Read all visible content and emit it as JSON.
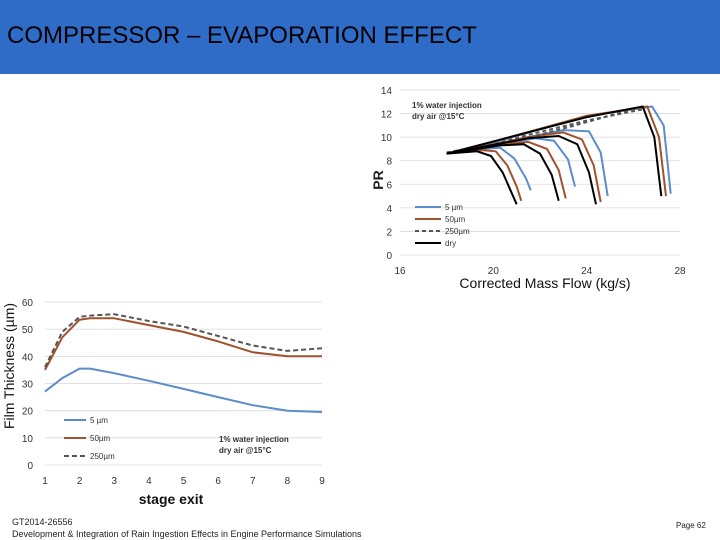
{
  "header": {
    "title": "COMPRESSOR – EVAPORATION EFFECT"
  },
  "footer": {
    "doc_id": "GT2014-26556",
    "doc_title": "Development & Integration of Rain Ingestion Effects in Engine Performance Simulations",
    "page": "Page 62"
  },
  "chart_data": [
    {
      "type": "line",
      "title": "",
      "xlabel": "Corrected Mass Flow (kg/s)",
      "ylabel": "PR",
      "xlim": [
        16,
        28
      ],
      "ylim": [
        0,
        14
      ],
      "x_ticks": [
        "16",
        "20",
        "24",
        "28"
      ],
      "y_ticks": [
        "0",
        "2",
        "4",
        "6",
        "8",
        "10",
        "12",
        "14"
      ],
      "annotation": [
        "1% water injection",
        "dry air @15°C"
      ],
      "legend": [
        "5 µm",
        "50µm",
        "250µm",
        "dry"
      ],
      "series": [
        {
          "name": "5 µm",
          "color": "#5b8ccc",
          "dash": "solid",
          "lines": [
            [
              [
                18.5,
                8.7
              ],
              [
                19.5,
                9.0
              ],
              [
                20.3,
                9.1
              ],
              [
                20.9,
                8.2
              ],
              [
                21.4,
                6.5
              ],
              [
                21.6,
                5.5
              ]
            ],
            [
              [
                18.5,
                8.7
              ],
              [
                20.3,
                9.4
              ],
              [
                21.8,
                9.9
              ],
              [
                22.6,
                9.7
              ],
              [
                23.2,
                8.1
              ],
              [
                23.5,
                5.8
              ]
            ],
            [
              [
                18.5,
                8.7
              ],
              [
                21.5,
                10.0
              ],
              [
                23.0,
                10.6
              ],
              [
                24.1,
                10.5
              ],
              [
                24.6,
                8.7
              ],
              [
                24.9,
                5.0
              ]
            ],
            [
              [
                18.5,
                8.7
              ],
              [
                24.0,
                11.8
              ],
              [
                26.8,
                12.6
              ],
              [
                27.3,
                11.0
              ],
              [
                27.6,
                5.2
              ]
            ]
          ]
        },
        {
          "name": "50µm",
          "color": "#a0522d",
          "dash": "solid",
          "lines": [
            [
              [
                18.3,
                8.7
              ],
              [
                19.5,
                8.9
              ],
              [
                20.1,
                8.8
              ],
              [
                20.6,
                7.6
              ],
              [
                21.0,
                5.8
              ],
              [
                21.2,
                4.6
              ]
            ],
            [
              [
                18.3,
                8.7
              ],
              [
                20.3,
                9.4
              ],
              [
                21.5,
                9.6
              ],
              [
                22.3,
                9.0
              ],
              [
                22.8,
                7.2
              ],
              [
                23.1,
                4.8
              ]
            ],
            [
              [
                18.3,
                8.7
              ],
              [
                21.5,
                10.0
              ],
              [
                23.0,
                10.4
              ],
              [
                23.8,
                9.8
              ],
              [
                24.3,
                7.6
              ],
              [
                24.6,
                4.5
              ]
            ],
            [
              [
                18.3,
                8.7
              ],
              [
                24.0,
                11.8
              ],
              [
                26.6,
                12.6
              ],
              [
                27.1,
                10.0
              ],
              [
                27.4,
                5.0
              ]
            ]
          ]
        },
        {
          "name": "250µm",
          "color": "#555555",
          "dash": "dashed",
          "lines": [
            [
              [
                18.0,
                8.7
              ],
              [
                20.0,
                9.4
              ],
              [
                21.5,
                10.2
              ],
              [
                24.0,
                11.4
              ],
              [
                26.5,
                12.4
              ]
            ],
            [
              [
                18.0,
                8.7
              ],
              [
                21.0,
                9.7
              ],
              [
                23.5,
                11.0
              ],
              [
                26.2,
                12.5
              ]
            ]
          ]
        },
        {
          "name": "dry",
          "color": "#000000",
          "dash": "solid",
          "lines": [
            [
              [
                18.0,
                8.6
              ],
              [
                19.3,
                8.8
              ],
              [
                19.9,
                8.4
              ],
              [
                20.4,
                7.0
              ],
              [
                20.8,
                5.2
              ],
              [
                21.0,
                4.3
              ]
            ],
            [
              [
                18.0,
                8.6
              ],
              [
                20.3,
                9.3
              ],
              [
                21.3,
                9.4
              ],
              [
                22.0,
                8.6
              ],
              [
                22.5,
                6.8
              ],
              [
                22.8,
                4.6
              ]
            ],
            [
              [
                18.0,
                8.6
              ],
              [
                21.5,
                9.9
              ],
              [
                22.8,
                10.1
              ],
              [
                23.6,
                9.4
              ],
              [
                24.1,
                7.0
              ],
              [
                24.4,
                4.3
              ]
            ],
            [
              [
                18.0,
                8.6
              ],
              [
                24.0,
                11.7
              ],
              [
                26.4,
                12.6
              ],
              [
                26.9,
                10.0
              ],
              [
                27.2,
                5.0
              ]
            ]
          ]
        }
      ]
    },
    {
      "type": "line",
      "title": "",
      "xlabel": "stage exit",
      "ylabel": "Film Thickness (µm)",
      "xlim": [
        1,
        9
      ],
      "ylim": [
        0,
        60
      ],
      "x_ticks": [
        "1",
        "2",
        "3",
        "4",
        "5",
        "6",
        "7",
        "8",
        "9"
      ],
      "y_ticks": [
        "0",
        "10",
        "20",
        "30",
        "40",
        "50",
        "60"
      ],
      "annotation": [
        "1% water injection",
        "dry air @15°C"
      ],
      "legend": [
        "5 µm",
        "50µm",
        "250µm"
      ],
      "x": [
        1,
        1.5,
        2,
        2.3,
        3,
        4,
        5,
        6,
        7,
        8,
        9
      ],
      "series": [
        {
          "name": "5 µm",
          "color": "#5b8ccc",
          "dash": "solid",
          "values": [
            27,
            32,
            35.5,
            35.5,
            33.8,
            31,
            28,
            25,
            22,
            20,
            19.5
          ]
        },
        {
          "name": "50µm",
          "color": "#a0522d",
          "dash": "solid",
          "values": [
            35,
            47,
            53.5,
            54,
            54,
            51.5,
            49,
            45.5,
            41.5,
            40,
            40
          ]
        },
        {
          "name": "250µm",
          "color": "#555555",
          "dash": "dashed",
          "values": [
            36,
            49,
            54.5,
            55,
            55.5,
            53,
            51,
            47.5,
            44,
            42,
            43
          ]
        }
      ]
    }
  ]
}
